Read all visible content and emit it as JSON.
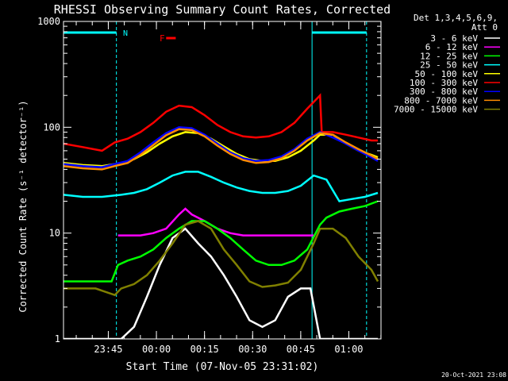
{
  "chart_data": {
    "type": "line",
    "title": "RHESSI Observing Summary Count Rates, Corrected",
    "xlabel": "Start Time (07-Nov-05 23:31:02)",
    "ylabel": "Corrected Count Rate (s⁻¹ detector⁻¹)",
    "yscale": "log",
    "ylim": [
      1,
      1000
    ],
    "x_range_minutes_from_start": [
      0,
      99
    ],
    "x_ticks": [
      {
        "label": "23:45",
        "minute": 13.97
      },
      {
        "label": "00:00",
        "minute": 28.97
      },
      {
        "label": "00:15",
        "minute": 43.97
      },
      {
        "label": "00:30",
        "minute": 58.97
      },
      {
        "label": "00:45",
        "minute": 73.97
      },
      {
        "label": "01:00",
        "minute": 88.97
      }
    ],
    "y_ticks": [
      "1",
      "10",
      "100",
      "1000"
    ],
    "legend_header": [
      "Det 1,3,4,5,6,9,",
      "Att 0"
    ],
    "legend_position": "right",
    "footer_date": "20-Oct-2021 23:08",
    "flag_labels": {
      "night": "N",
      "flare": "F"
    },
    "night_periods": [
      [
        0,
        16.5
      ],
      [
        77.5,
        94.5
      ]
    ],
    "flare_marker_minute": [
      32,
      35
    ],
    "series": [
      {
        "name": "3 - 6 keV",
        "color": "#ffffff",
        "x": [
          0,
          5,
          10,
          16,
          18,
          22,
          26,
          30,
          34,
          38,
          42,
          46,
          50,
          54,
          58,
          62,
          66,
          70,
          74,
          77,
          80,
          84,
          88,
          92,
          95,
          98
        ],
        "y": [
          1,
          1,
          1,
          1,
          1,
          1.3,
          2.5,
          5,
          9,
          11,
          8,
          6,
          4,
          2.5,
          1.5,
          1.3,
          1.5,
          2.5,
          3,
          3,
          1,
          1,
          1,
          1,
          1,
          1
        ]
      },
      {
        "name": "6 - 12 keV",
        "color": "#ff00ff",
        "x": [
          17,
          20,
          24,
          28,
          32,
          36,
          38,
          40,
          44,
          48,
          52,
          56,
          60,
          64,
          68,
          72,
          76,
          78
        ],
        "y": [
          9.5,
          9.5,
          9.5,
          10,
          11,
          15,
          17,
          15,
          13,
          11,
          10,
          9.5,
          9.5,
          9.5,
          9.5,
          9.5,
          9.5,
          9.5
        ]
      },
      {
        "name": "12 - 25 keV",
        "color": "#00ff00",
        "x": [
          0,
          8,
          15,
          17,
          20,
          24,
          28,
          32,
          36,
          40,
          44,
          48,
          52,
          56,
          60,
          64,
          68,
          72,
          76,
          80,
          82,
          86,
          90,
          94,
          98
        ],
        "y": [
          3.5,
          3.5,
          3.5,
          5,
          5.5,
          6,
          7,
          9,
          11,
          13,
          13,
          11,
          9,
          7,
          5.5,
          5,
          5,
          5.5,
          7,
          12,
          14,
          16,
          17,
          18,
          20
        ]
      },
      {
        "name": "25 - 50 keV",
        "color": "#00ffff",
        "x": [
          0,
          6,
          12,
          18,
          22,
          26,
          30,
          34,
          38,
          42,
          46,
          50,
          54,
          58,
          62,
          66,
          70,
          74,
          78,
          82,
          86,
          90,
          94,
          98
        ],
        "y": [
          23,
          22,
          22,
          23,
          24,
          26,
          30,
          35,
          38,
          38,
          34,
          30,
          27,
          25,
          24,
          24,
          25,
          28,
          35,
          32,
          20,
          21,
          22,
          24
        ]
      },
      {
        "name": "50 - 100 keV",
        "color": "#ffff00",
        "x": [
          0,
          6,
          12,
          18,
          22,
          26,
          30,
          34,
          38,
          42,
          46,
          50,
          54,
          58,
          62,
          66,
          70,
          74,
          78,
          80,
          84,
          88,
          92,
          96,
          98
        ],
        "y": [
          46,
          44,
          43,
          46,
          50,
          58,
          70,
          82,
          90,
          88,
          78,
          66,
          56,
          50,
          48,
          48,
          52,
          60,
          75,
          85,
          85,
          70,
          60,
          55,
          52
        ]
      },
      {
        "name": "100 - 300 keV",
        "color": "#ff0000",
        "x": [
          0,
          6,
          12,
          16,
          20,
          24,
          28,
          32,
          36,
          40,
          44,
          48,
          52,
          56,
          60,
          64,
          68,
          72,
          76,
          80,
          80.5,
          84,
          88,
          92,
          96,
          98
        ],
        "y": [
          70,
          65,
          60,
          72,
          78,
          90,
          110,
          140,
          160,
          155,
          130,
          105,
          90,
          82,
          80,
          82,
          90,
          110,
          150,
          200,
          90,
          90,
          85,
          80,
          75,
          75
        ]
      },
      {
        "name": "300 - 800 keV",
        "color": "#0000ff",
        "x": [
          0,
          6,
          12,
          16,
          20,
          24,
          28,
          32,
          36,
          40,
          44,
          48,
          52,
          56,
          60,
          64,
          68,
          72,
          76,
          80,
          84,
          88,
          92,
          96,
          98
        ],
        "y": [
          45,
          43,
          42,
          45,
          48,
          58,
          72,
          88,
          100,
          98,
          85,
          70,
          58,
          51,
          48,
          49,
          53,
          62,
          78,
          90,
          80,
          70,
          60,
          52,
          48
        ]
      },
      {
        "name": "800 - 7000 keV",
        "color": "#ff8c00",
        "x": [
          0,
          6,
          12,
          16,
          20,
          24,
          28,
          32,
          36,
          40,
          44,
          48,
          52,
          56,
          60,
          64,
          68,
          72,
          76,
          80,
          84,
          88,
          92,
          96,
          98
        ],
        "y": [
          43,
          41,
          40,
          43,
          46,
          55,
          68,
          84,
          96,
          94,
          82,
          67,
          56,
          49,
          46,
          47,
          51,
          60,
          75,
          88,
          85,
          72,
          62,
          54,
          50
        ]
      },
      {
        "name": "7000 - 15000 keV",
        "color": "#808000",
        "x": [
          0,
          5,
          10,
          16,
          18,
          22,
          26,
          30,
          34,
          38,
          42,
          46,
          50,
          54,
          58,
          62,
          66,
          70,
          74,
          78,
          80,
          84,
          88,
          92,
          96,
          98
        ],
        "y": [
          3,
          3,
          3,
          2.6,
          3,
          3.3,
          4,
          5.5,
          8,
          12,
          13,
          11,
          7,
          5,
          3.5,
          3.1,
          3.2,
          3.4,
          4.5,
          8,
          11,
          11,
          9,
          6,
          4.5,
          3.5
        ]
      }
    ]
  }
}
